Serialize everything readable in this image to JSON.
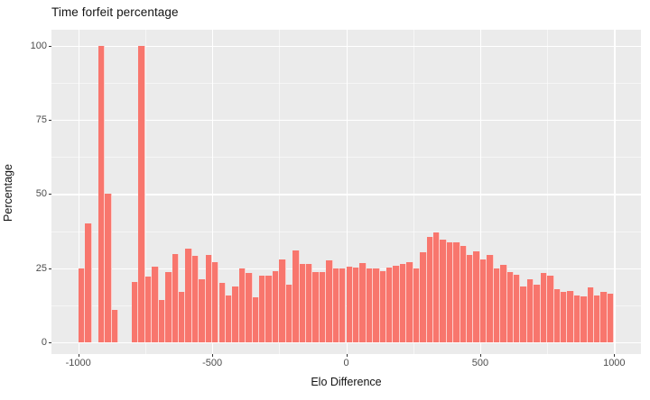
{
  "title": "Time forfeit percentage",
  "chart_data": {
    "type": "bar",
    "title": "Time forfeit percentage",
    "xlabel": "Elo Difference",
    "ylabel": "Percentage",
    "x_ticks": [
      -1000,
      -500,
      0,
      500,
      1000
    ],
    "x_tick_labels": [
      "-1000",
      "-500",
      "0",
      "500",
      "1000"
    ],
    "x_minor_ticks": [
      -750,
      -250,
      250,
      750
    ],
    "y_ticks": [
      0,
      25,
      50,
      75,
      100
    ],
    "y_tick_labels": [
      "0",
      "25",
      "50",
      "75",
      "100"
    ],
    "y_minor_ticks": [
      12.5,
      37.5,
      62.5,
      87.5
    ],
    "xlim": [
      -1100,
      1100
    ],
    "ylim": [
      -5,
      105
    ],
    "bin_width": 25,
    "grid": true,
    "legend": "none",
    "bar_color": "#F8766D",
    "panel_bg": "#EBEBEB",
    "grid_color": "#FFFFFF",
    "bins": [
      [
        -1000,
        25.0
      ],
      [
        -975,
        40.0
      ],
      [
        -950,
        0
      ],
      [
        -925,
        100.0
      ],
      [
        -900,
        50.0
      ],
      [
        -875,
        11.0
      ],
      [
        -850,
        0
      ],
      [
        -825,
        0
      ],
      [
        -800,
        20.2
      ],
      [
        -775,
        100.0
      ],
      [
        -750,
        22.3
      ],
      [
        -725,
        25.4
      ],
      [
        -700,
        14.2
      ],
      [
        -675,
        23.6
      ],
      [
        -650,
        29.9
      ],
      [
        -625,
        17.0
      ],
      [
        -600,
        31.6
      ],
      [
        -575,
        29.1
      ],
      [
        -550,
        21.3
      ],
      [
        -525,
        29.4
      ],
      [
        -500,
        27.1
      ],
      [
        -475,
        20.0
      ],
      [
        -450,
        15.7
      ],
      [
        -425,
        18.7
      ],
      [
        -400,
        25.0
      ],
      [
        -375,
        23.5
      ],
      [
        -350,
        15.2
      ],
      [
        -325,
        22.6
      ],
      [
        -300,
        22.6
      ],
      [
        -275,
        24.1
      ],
      [
        -250,
        27.8
      ],
      [
        -225,
        19.5
      ],
      [
        -200,
        31.1
      ],
      [
        -175,
        26.5
      ],
      [
        -150,
        26.3
      ],
      [
        -125,
        23.8
      ],
      [
        -100,
        23.8
      ],
      [
        -75,
        27.5
      ],
      [
        -50,
        25.0
      ],
      [
        -25,
        25.0
      ],
      [
        0,
        25.4
      ],
      [
        25,
        25.3
      ],
      [
        50,
        26.8
      ],
      [
        75,
        24.8
      ],
      [
        100,
        25.0
      ],
      [
        125,
        24.1
      ],
      [
        150,
        25.3
      ],
      [
        175,
        25.9
      ],
      [
        200,
        26.3
      ],
      [
        225,
        27.0
      ],
      [
        250,
        25.0
      ],
      [
        275,
        30.4
      ],
      [
        300,
        35.4
      ],
      [
        325,
        37.0
      ],
      [
        350,
        34.6
      ],
      [
        375,
        33.6
      ],
      [
        400,
        33.7
      ],
      [
        425,
        32.6
      ],
      [
        450,
        29.4
      ],
      [
        475,
        30.6
      ],
      [
        500,
        27.9
      ],
      [
        525,
        29.4
      ],
      [
        550,
        25.0
      ],
      [
        575,
        26.1
      ],
      [
        600,
        23.8
      ],
      [
        625,
        22.7
      ],
      [
        650,
        18.7
      ],
      [
        675,
        21.2
      ],
      [
        700,
        19.4
      ],
      [
        725,
        23.3
      ],
      [
        750,
        22.5
      ],
      [
        775,
        18.0
      ],
      [
        800,
        17.0
      ],
      [
        825,
        17.4
      ],
      [
        850,
        15.7
      ],
      [
        875,
        15.4
      ],
      [
        900,
        18.4
      ],
      [
        925,
        15.9
      ],
      [
        950,
        17.0
      ],
      [
        975,
        16.5
      ]
    ]
  }
}
